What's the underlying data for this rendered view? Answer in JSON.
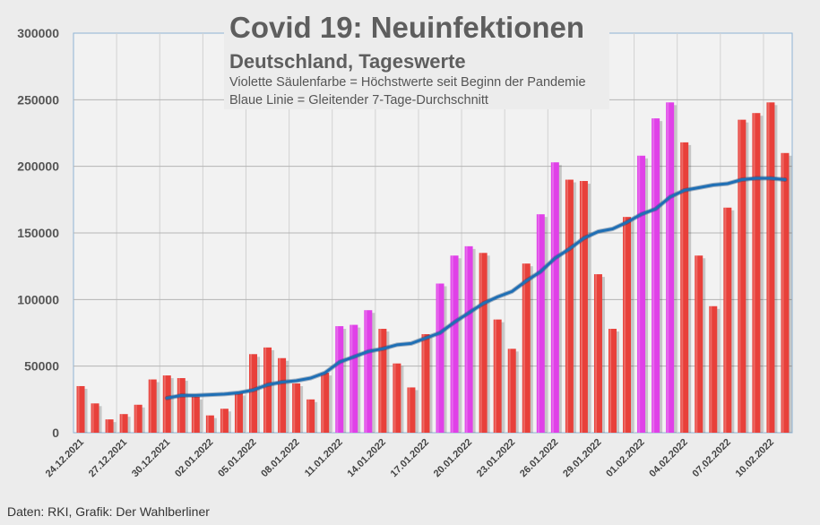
{
  "chart_data": {
    "type": "bar",
    "title": "Covid 19: Neuinfektionen",
    "subtitle": "Deutschland, Tageswerte",
    "notes": [
      "Violette Säulenfarbe = Höchstwerte seit Beginn der Pandemie",
      "Blaue Linie = Gleitender 7-Tage-Durchschnitt"
    ],
    "source": "Daten: RKI, Grafik: Der Wahlberliner",
    "ylim": [
      0,
      300000
    ],
    "yticks": [
      "0",
      "50000",
      "100000",
      "150000",
      "200000",
      "250000",
      "300000"
    ],
    "xtick_labels": [
      "24.12.2021",
      "27.12.2021",
      "30.12.2021",
      "02.01.2022",
      "05.01.2022",
      "08.01.2022",
      "11.01.2022",
      "14.01.2022",
      "17.01.2022",
      "20.01.2022",
      "23.01.2022",
      "26.01.2022",
      "29.01.2022",
      "01.02.2022",
      "04.02.2022",
      "07.02.2022",
      "10.02.2022"
    ],
    "grid": true,
    "colors": {
      "bar": "#e8403a",
      "record_bar": "#e040e8",
      "line": "#1f6fb5"
    },
    "series": [
      {
        "name": "Tageswerte",
        "values": [
          35000,
          22000,
          10000,
          14000,
          21000,
          40000,
          43000,
          41000,
          27000,
          13000,
          18000,
          30000,
          59000,
          64000,
          56000,
          37000,
          25000,
          45000,
          80000,
          81000,
          92000,
          78000,
          52000,
          34000,
          74000,
          112000,
          133000,
          140000,
          135000,
          85000,
          63000,
          127000,
          164000,
          203000,
          190000,
          189000,
          119000,
          78000,
          162000,
          208000,
          236000,
          248000,
          218000,
          133000,
          95000,
          169000,
          235000,
          240000,
          248000,
          210000
        ],
        "record": [
          false,
          false,
          false,
          false,
          false,
          false,
          false,
          false,
          false,
          false,
          false,
          false,
          false,
          false,
          false,
          false,
          false,
          false,
          true,
          true,
          true,
          false,
          false,
          false,
          false,
          true,
          true,
          true,
          false,
          false,
          false,
          false,
          true,
          true,
          false,
          false,
          false,
          false,
          false,
          true,
          true,
          true,
          false,
          false,
          false,
          false,
          false,
          false,
          false,
          false
        ]
      },
      {
        "name": "Gleitender 7-Tage-Durchschnitt",
        "start_index": 6,
        "values": [
          26000,
          28000,
          28000,
          28500,
          29000,
          30000,
          32000,
          36000,
          38000,
          39000,
          41000,
          45000,
          53000,
          57000,
          61000,
          63000,
          66000,
          67000,
          71000,
          75000,
          83000,
          90000,
          97000,
          102000,
          106000,
          114000,
          121000,
          131000,
          138000,
          146000,
          151000,
          153000,
          158000,
          164000,
          168000,
          177000,
          182000,
          184000,
          186000,
          187000,
          190000,
          191000,
          191000,
          190000
        ]
      }
    ]
  }
}
